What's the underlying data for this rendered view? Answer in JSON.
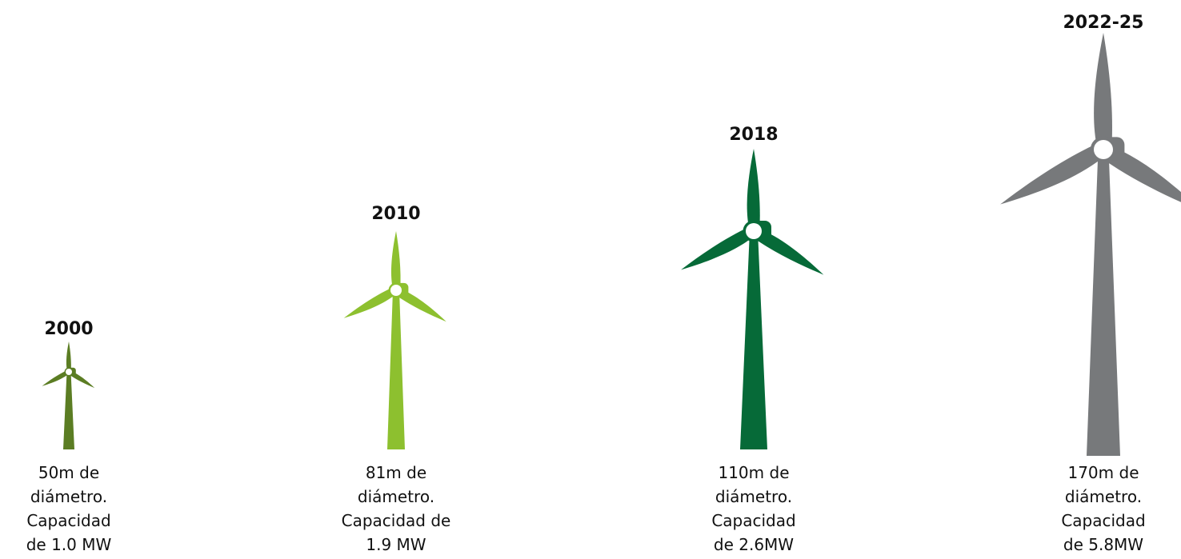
{
  "turbines": [
    {
      "year": "2000",
      "description": [
        "50m de",
        "diámetro.",
        "Capacidad",
        "de 1.0 MW"
      ]
    },
    {
      "year": "2010",
      "description": [
        "81m de",
        "diámetro.",
        "Capacidad de",
        "1.9 MW"
      ]
    },
    {
      "year": "2018",
      "description": [
        "110m de",
        "diámetro.",
        "Capacidad",
        "de 2.6MW"
      ]
    },
    {
      "year": "2022-25",
      "description": [
        "170m de",
        "diámetro.",
        "Capacidad",
        "de 5.8MW"
      ]
    }
  ]
}
